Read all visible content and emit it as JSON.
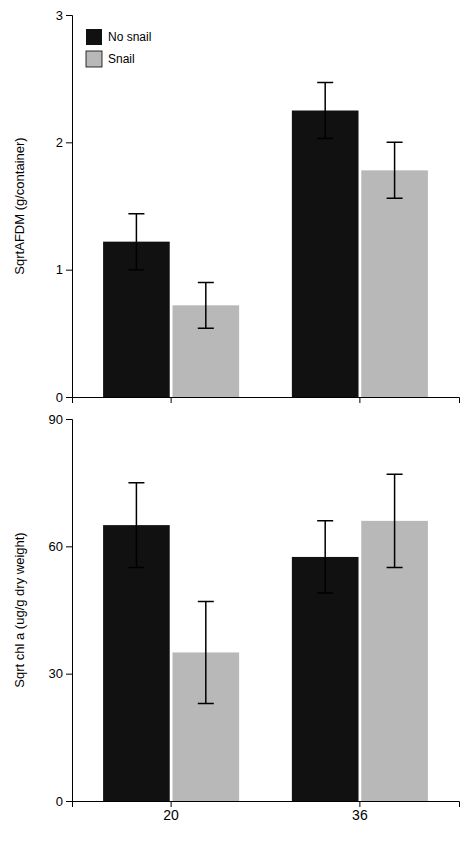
{
  "chart_data": [
    {
      "type": "bar",
      "ylabel": "SqrtAFDM (g/container)",
      "categories": [
        null,
        null
      ],
      "series": [
        {
          "name": "No snail",
          "color": "#111111",
          "values": [
            1.22,
            2.25
          ],
          "errors": [
            0.22,
            0.22
          ]
        },
        {
          "name": "Snail",
          "color": "#b8b8b8",
          "values": [
            0.72,
            1.78
          ],
          "errors": [
            0.18,
            0.22
          ]
        }
      ],
      "ylim": [
        0,
        3
      ],
      "yticks": [
        0,
        1,
        2,
        3
      ],
      "legend": "upper left"
    },
    {
      "type": "bar",
      "ylabel": "Sqrt chl a (ug/g dry weight)",
      "categories": [
        "20",
        "36"
      ],
      "series": [
        {
          "name": "No snail",
          "color": "#111111",
          "values": [
            65.0,
            57.5
          ],
          "errors": [
            10.0,
            8.5
          ]
        },
        {
          "name": "Snail",
          "color": "#b8b8b8",
          "values": [
            35.0,
            66.0
          ],
          "errors": [
            12.0,
            11.0
          ]
        }
      ],
      "ylim": [
        0,
        90
      ],
      "yticks": [
        0,
        30,
        60,
        90
      ],
      "legend": false
    }
  ]
}
